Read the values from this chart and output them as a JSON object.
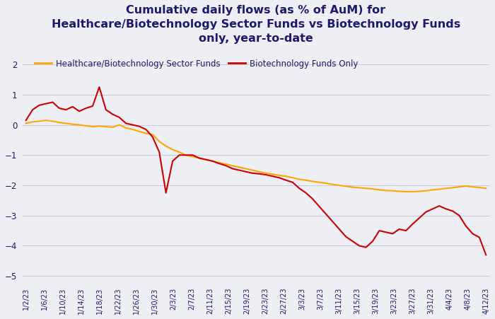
{
  "title": "Cumulative daily flows (as % of AuM) for\nHealthcare/Biotechnology Sector Funds vs Biotechnology Funds\nonly, year-to-date",
  "title_color": "#1a1a6e",
  "title_fontsize": 11.5,
  "legend_labels": [
    "Healthcare/Biotechnology Sector Funds",
    "Biotechnology Funds Only"
  ],
  "line_colors": [
    "#FFA500",
    "#CC0000"
  ],
  "background_color": "#eeeef5",
  "ylim": [
    -5.2,
    2.5
  ],
  "yticks": [
    -5,
    -4,
    -3,
    -2,
    -1,
    0,
    1,
    2
  ],
  "tick_label_color": "#1a1a6e",
  "xtick_labels": [
    "1/2/23",
    "1/6/23",
    "1/10/23",
    "1/14/23",
    "1/18/23",
    "1/22/23",
    "1/26/23",
    "1/30/23",
    "2/3/23",
    "2/7/23",
    "2/11/23",
    "2/15/23",
    "2/19/23",
    "2/23/23",
    "2/27/23",
    "3/3/23",
    "3/7/23",
    "3/11/23",
    "3/15/23",
    "3/19/23",
    "3/23/23",
    "3/27/23",
    "3/31/23",
    "4/4/23",
    "4/8/23",
    "4/12/23"
  ],
  "healthcare_bio": [
    0.05,
    0.1,
    0.12,
    0.15,
    0.12,
    0.08,
    0.05,
    0.02,
    0.0,
    -0.03,
    -0.06,
    -0.04,
    -0.06,
    -0.08,
    0.0,
    -0.1,
    -0.15,
    -0.22,
    -0.28,
    -0.32,
    -0.55,
    -0.7,
    -0.82,
    -0.9,
    -1.0,
    -1.05,
    -1.1,
    -1.15,
    -1.2,
    -1.25,
    -1.3,
    -1.35,
    -1.4,
    -1.45,
    -1.5,
    -1.55,
    -1.6,
    -1.63,
    -1.67,
    -1.7,
    -1.75,
    -1.8,
    -1.83,
    -1.87,
    -1.9,
    -1.93,
    -1.97,
    -2.0,
    -2.03,
    -2.06,
    -2.08,
    -2.1,
    -2.12,
    -2.15,
    -2.17,
    -2.18,
    -2.2,
    -2.21,
    -2.21,
    -2.2,
    -2.18,
    -2.15,
    -2.13,
    -2.1,
    -2.08,
    -2.05,
    -2.02,
    -2.05,
    -2.07,
    -2.1
  ],
  "biotech_only": [
    0.15,
    0.5,
    0.65,
    0.7,
    0.75,
    0.55,
    0.5,
    0.6,
    0.45,
    0.55,
    0.62,
    1.25,
    0.5,
    0.35,
    0.25,
    0.05,
    0.0,
    -0.05,
    -0.15,
    -0.4,
    -0.9,
    -2.25,
    -1.2,
    -1.0,
    -1.0,
    -1.0,
    -1.1,
    -1.15,
    -1.2,
    -1.28,
    -1.35,
    -1.45,
    -1.5,
    -1.55,
    -1.6,
    -1.62,
    -1.65,
    -1.7,
    -1.75,
    -1.83,
    -1.9,
    -2.1,
    -2.25,
    -2.45,
    -2.7,
    -2.95,
    -3.2,
    -3.45,
    -3.7,
    -3.85,
    -4.0,
    -4.05,
    -3.85,
    -3.5,
    -3.55,
    -3.6,
    -3.45,
    -3.5,
    -3.28,
    -3.08,
    -2.88,
    -2.78,
    -2.68,
    -2.78,
    -2.85,
    -3.0,
    -3.35,
    -3.6,
    -3.72,
    -4.3
  ]
}
